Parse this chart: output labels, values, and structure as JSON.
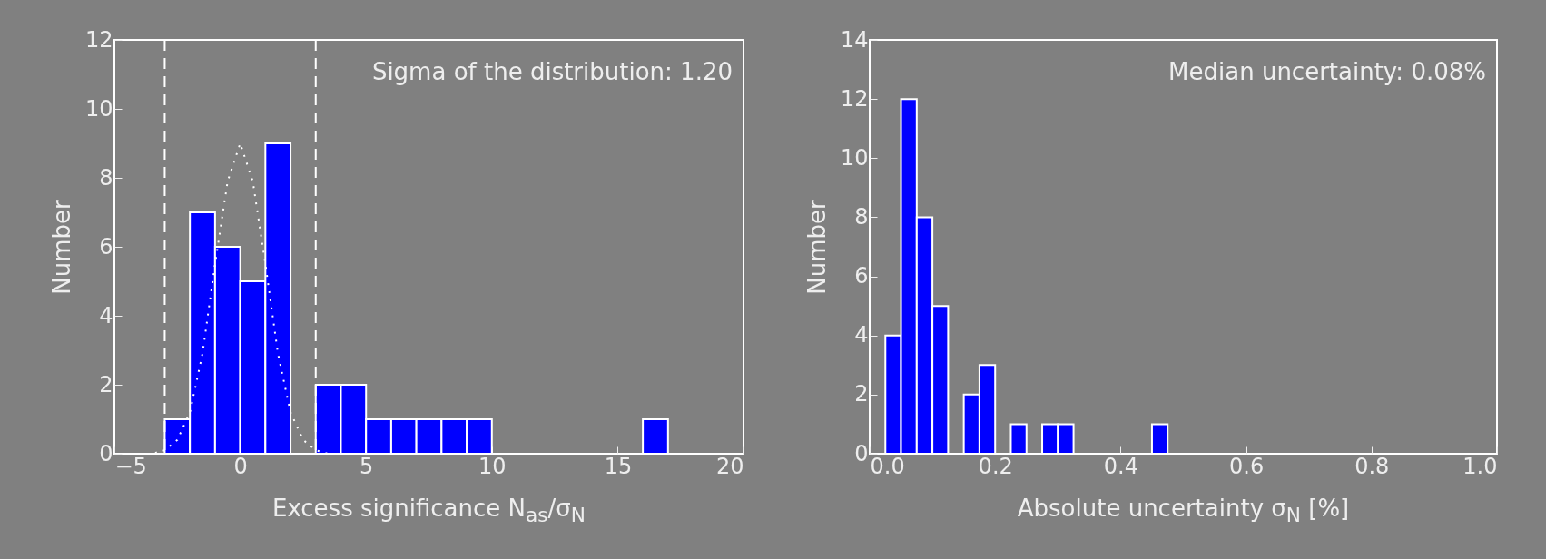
{
  "chart_data": [
    {
      "type": "histogram",
      "xlabel": "Excess significance N$_{as}$/σ$_{N}$",
      "ylabel": "Number",
      "annotations": [
        "Sigma of the distribution: 1.20"
      ],
      "bins": [
        -3,
        -2,
        -1,
        0,
        1,
        2,
        3,
        4,
        5,
        6,
        7,
        8,
        9,
        10,
        11,
        12,
        13,
        14,
        15,
        16,
        17
      ],
      "series": [
        {
          "type": "histogram",
          "color": "#0000ff",
          "values": [
            1,
            7,
            6,
            5,
            9,
            0,
            2,
            2,
            1,
            1,
            1,
            1,
            1,
            0,
            0,
            0,
            0,
            0,
            0,
            1
          ]
        },
        {
          "type": "line",
          "color": "#ffffff",
          "line_style": "dotted",
          "x": [
            -5,
            -4.5,
            -4,
            -3.5,
            -3,
            -2.5,
            -2,
            -1.5,
            -1,
            -0.5,
            0,
            0.5,
            1,
            1.5,
            2,
            2.5,
            3,
            3.5,
            4,
            4.5,
            5
          ],
          "values": [
            0,
            0,
            0,
            0,
            0.1,
            0.4,
            1.2,
            2.9,
            5.5,
            7.9,
            9,
            7.9,
            5.5,
            2.9,
            1.2,
            0.4,
            0.1,
            0,
            0,
            0,
            0
          ]
        }
      ],
      "ref_lines": [
        {
          "axis": "x",
          "value": -3,
          "color": "#ffffff",
          "line_style": "dashed"
        },
        {
          "axis": "x",
          "value": 3,
          "color": "#ffffff",
          "line_style": "dashed"
        }
      ],
      "xlim": [
        -5,
        20
      ],
      "xticks": [
        {
          "value": -5,
          "label": "−5"
        },
        0,
        5,
        10,
        15,
        20
      ],
      "ylim": [
        0,
        12
      ],
      "yticks": [
        0,
        2,
        4,
        6,
        8,
        10,
        12
      ],
      "marker": "none"
    },
    {
      "type": "histogram",
      "xlabel": "Absolute uncertainty σ$_{N}$ [%]",
      "ylabel": "Number",
      "annotations": [
        "Median uncertainty: 0.08%"
      ],
      "bins": [
        0.025,
        0.05,
        0.075,
        0.1,
        0.125,
        0.15,
        0.175,
        0.2,
        0.225,
        0.25,
        0.275,
        0.3,
        0.325,
        0.35,
        0.375,
        0.4,
        0.425,
        0.45,
        0.475
      ],
      "values": [
        4,
        12,
        8,
        5,
        0,
        2,
        3,
        0,
        1,
        0,
        1,
        1,
        0,
        0,
        0,
        0,
        0,
        1
      ],
      "color": "#0000ff",
      "xlim": [
        0,
        1
      ],
      "xticks": [
        {
          "value": 0,
          "label": "0.0"
        },
        0.2,
        0.4,
        0.6,
        0.8,
        {
          "value": 1,
          "label": "1.0"
        }
      ],
      "ylim": [
        0,
        14
      ],
      "yticks": [
        0,
        2,
        4,
        6,
        8,
        10,
        12,
        14
      ]
    }
  ]
}
